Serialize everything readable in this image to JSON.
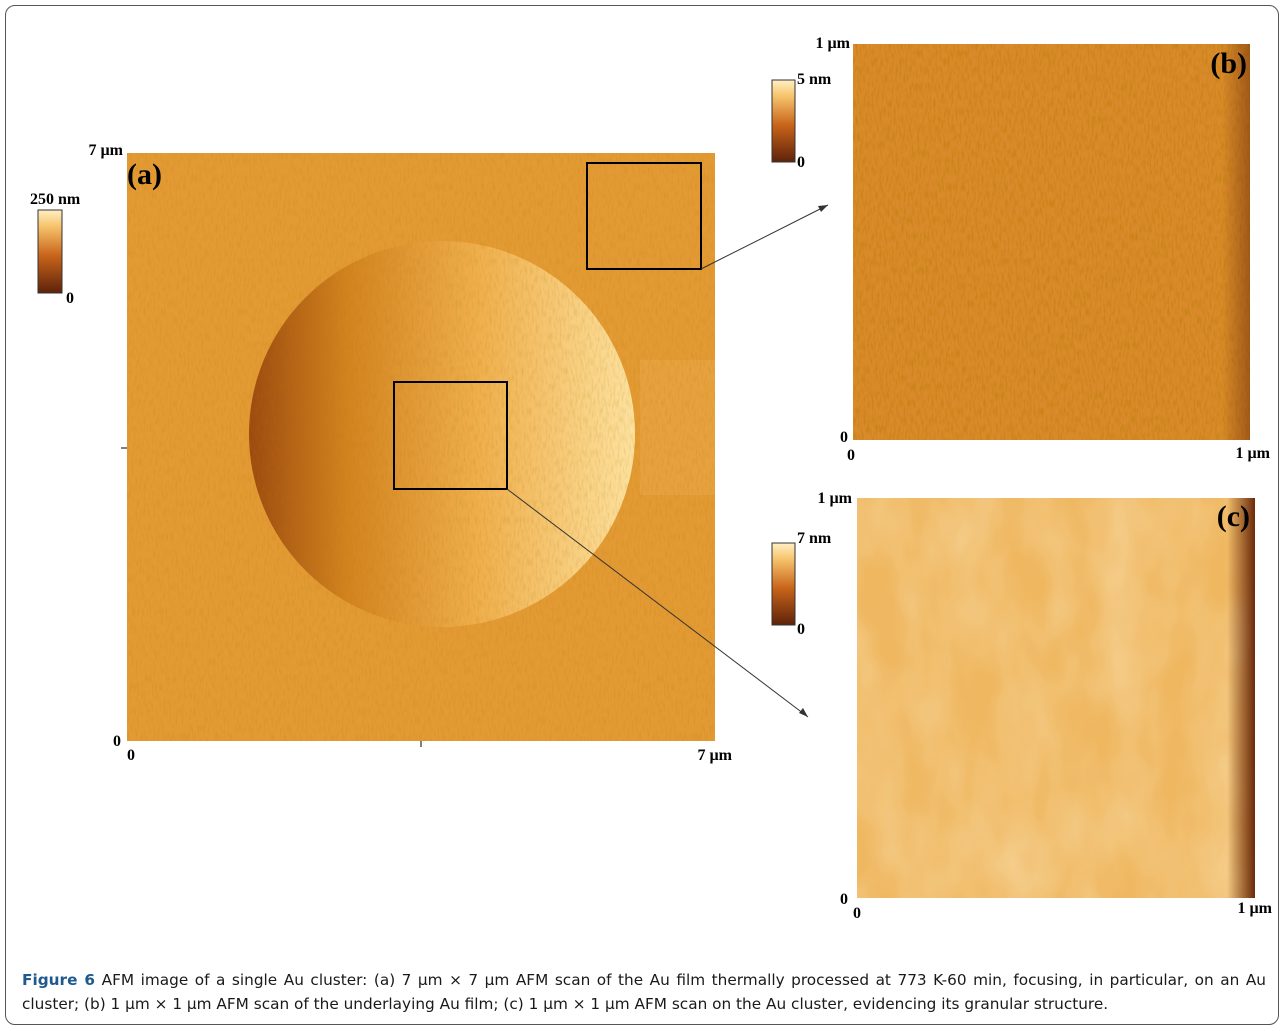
{
  "figure": {
    "panels": [
      {
        "label": "(a)",
        "y_top": "7 µm",
        "y_bottom": "0",
        "x_left": "0",
        "x_right": "7 µm",
        "scale_max": "250 nm",
        "scale_min": "0"
      },
      {
        "label": "(b)",
        "y_top": "1 µm",
        "y_bottom": "0",
        "x_left": "0",
        "x_right": "1 µm",
        "scale_max": "5 nm",
        "scale_min": "0"
      },
      {
        "label": "(c)",
        "y_top": "1 µm",
        "y_bottom": "0",
        "x_left": "0",
        "x_right": "1 µm",
        "scale_max": "7 nm",
        "scale_min": "0"
      }
    ],
    "caption": {
      "label": "Figure 6",
      "text": "AFM image of a single Au cluster: (a) 7 µm × 7 µm AFM scan of the Au film thermally processed at 773 K-60 min, focusing, in particular, on an Au cluster; (b) 1 µm × 1 µm AFM scan of the underlaying Au film; (c) 1 µm × 1 µm AFM scan on the Au cluster, evidencing its granular structure."
    }
  }
}
